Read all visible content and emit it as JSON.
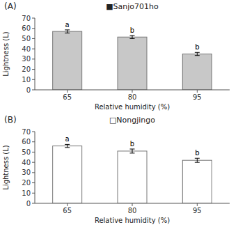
{
  "chart_data": [
    {
      "type": "bar",
      "title": "■Sanjo701ho",
      "annotations": [
        "(A)"
      ],
      "categories": [
        "65",
        "80",
        "95"
      ],
      "values": [
        57.0,
        51.5,
        35.0
      ],
      "errors": [
        1.5,
        1.5,
        1.5
      ],
      "letters": [
        "a",
        "b",
        "b"
      ],
      "color": "#c8c8c8",
      "xlabel": "Relative humidity (%)",
      "ylabel": "Lightness (L)",
      "ylim": [
        0,
        70
      ],
      "yticks": [
        0,
        10,
        20,
        30,
        40,
        50,
        60,
        70
      ],
      "grid": false
    },
    {
      "type": "bar",
      "title": "□Nongjingo",
      "annotations": [
        "(B)"
      ],
      "categories": [
        "65",
        "80",
        "95"
      ],
      "values": [
        56.0,
        51.0,
        42.0
      ],
      "errors": [
        1.5,
        2.0,
        2.0
      ],
      "letters": [
        "a",
        "b",
        "b"
      ],
      "color": "#ffffff",
      "xlabel": "Relative humidity (%)",
      "ylabel": "Lightness (L)",
      "ylim": [
        0,
        70
      ],
      "yticks": [
        0,
        10,
        20,
        30,
        40,
        50,
        60,
        70
      ],
      "grid": false
    }
  ]
}
